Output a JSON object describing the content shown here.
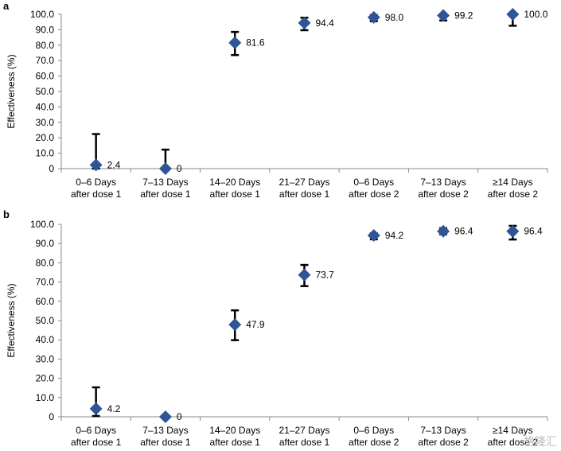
{
  "chart_data": [
    {
      "type": "scatter",
      "panel": "a",
      "title": "",
      "xlabel": "",
      "ylabel": "Effectiveness (%)",
      "ylim": [
        0,
        100
      ],
      "yticks": [
        "0",
        "10.0",
        "20.0",
        "30.0",
        "40.0",
        "50.0",
        "60.0",
        "70.0",
        "80.0",
        "90.0",
        "100.0"
      ],
      "categories": [
        [
          "0–6 Days",
          "after dose 1"
        ],
        [
          "7–13 Days",
          "after dose 1"
        ],
        [
          "14–20 Days",
          "after dose 1"
        ],
        [
          "21–27 Days",
          "after dose 1"
        ],
        [
          "0–6 Days",
          "after dose 2"
        ],
        [
          "7–13 Days",
          "after dose 2"
        ],
        [
          "≥14 Days",
          "after dose 2"
        ]
      ],
      "values": [
        2.4,
        0,
        81.6,
        94.4,
        98.0,
        99.2,
        100.0
      ],
      "value_labels": [
        "2.4",
        "0",
        "81.6",
        "94.4",
        "98.0",
        "99.2",
        "100.0"
      ],
      "error_low": [
        0,
        0,
        73.6,
        89.7,
        95.5,
        96.0,
        92.6
      ],
      "error_high": [
        22.4,
        12.3,
        88.6,
        97.8,
        99.5,
        99.9,
        100.0
      ],
      "marker": "diamond",
      "marker_color": "#2f5597",
      "error_color": "#000000",
      "grid": false
    },
    {
      "type": "scatter",
      "panel": "b",
      "title": "",
      "xlabel": "",
      "ylabel": "Effectiveness (%)",
      "ylim": [
        0,
        100
      ],
      "yticks": [
        "0",
        "10.0",
        "20.0",
        "30.0",
        "40.0",
        "50.0",
        "60.0",
        "70.0",
        "80.0",
        "90.0",
        "100.0"
      ],
      "categories": [
        [
          "0–6 Days",
          "after dose 1"
        ],
        [
          "7–13 Days",
          "after dose 1"
        ],
        [
          "14–20 Days",
          "after dose 1"
        ],
        [
          "21–27 Days",
          "after dose 1"
        ],
        [
          "0–6 Days",
          "after dose 2"
        ],
        [
          "7–13 Days",
          "after dose 2"
        ],
        [
          "≥14 Days",
          "after dose 2"
        ]
      ],
      "values": [
        4.2,
        0,
        47.9,
        73.7,
        94.2,
        96.4,
        96.4
      ],
      "value_labels": [
        "4.2",
        "0",
        "47.9",
        "73.7",
        "94.2",
        "96.4",
        "96.4"
      ],
      "error_low": [
        0.4,
        0,
        39.8,
        67.9,
        92.2,
        94.8,
        92.1
      ],
      "error_high": [
        15.3,
        0,
        55.3,
        78.9,
        95.3,
        98.0,
        99.2
      ],
      "marker": "diamond",
      "marker_color": "#2f5597",
      "error_color": "#000000",
      "grid": false
    }
  ],
  "watermark": "格隆汇"
}
